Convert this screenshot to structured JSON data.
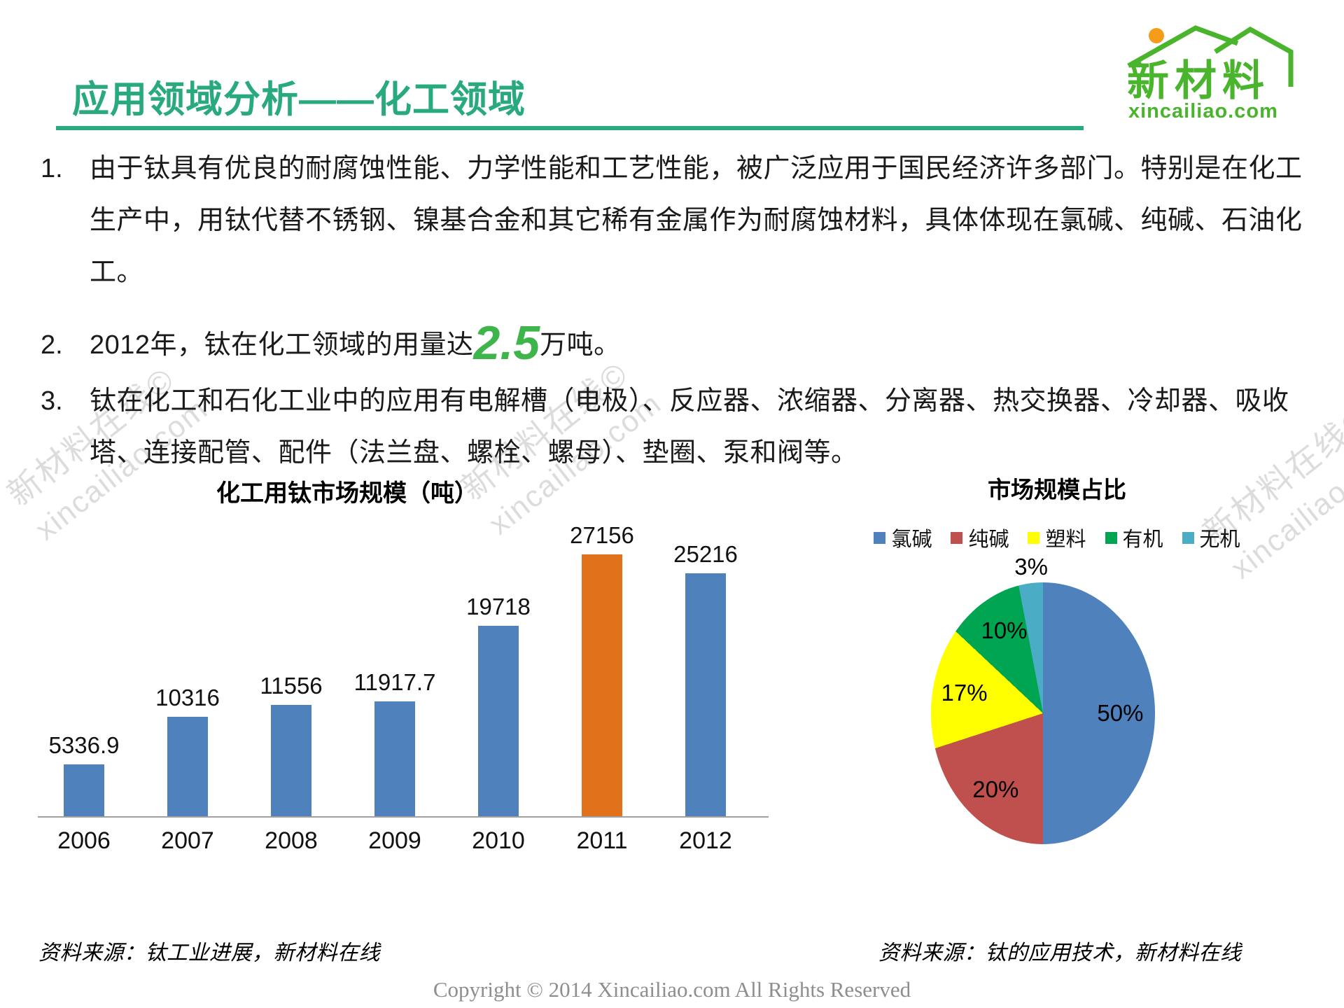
{
  "header": {
    "title": "应用领域分析——化工领域",
    "logo_name": "新材料",
    "logo_domain": "xincailiao.com"
  },
  "bullets": [
    {
      "num": "1.",
      "text": "由于钛具有优良的耐腐蚀性能、力学性能和工艺性能，被广泛应用于国民经济许多部门。特别是在化工生产中，用钛代替不锈钢、镍基合金和其它稀有金属作为耐腐蚀材料，具体体现在氯碱、纯碱、石油化工。"
    },
    {
      "num": "2.",
      "pre": "2012年，钛在化工领域的用量达",
      "highlight": "2.5",
      "post": "万吨。"
    },
    {
      "num": "3.",
      "text": "钛在化工和石化工业中的应用有电解槽（电极）、反应器、浓缩器、分离器、热交换器、冷却器、吸收塔、连接配管、配件（法兰盘、螺栓、螺母）、垫圈、泵和阀等。"
    }
  ],
  "chart_data": [
    {
      "type": "bar",
      "title": "化工用钛市场规模（吨）",
      "categories": [
        "2006",
        "2007",
        "2008",
        "2009",
        "2010",
        "2011",
        "2012"
      ],
      "values": [
        5336.9,
        10316,
        11556,
        11917.7,
        19718,
        27156,
        25216
      ],
      "value_labels": [
        "5336.9",
        "10316",
        "11556",
        "11917.7",
        "19718",
        "27156",
        "25216"
      ],
      "bar_colors": [
        "#4f81bd",
        "#4f81bd",
        "#4f81bd",
        "#4f81bd",
        "#4f81bd",
        "#e2711b",
        "#4f81bd"
      ],
      "xlabel": "",
      "ylabel": "",
      "ylim": [
        0,
        27156
      ],
      "gridlines": false,
      "legend": "none",
      "highlight_category": "2011"
    },
    {
      "type": "pie",
      "title": "市场规模占比",
      "labels": [
        "氯碱",
        "纯碱",
        "塑料",
        "有机",
        "无机"
      ],
      "values": [
        50,
        20,
        17,
        10,
        3
      ],
      "value_labels": [
        "50%",
        "20%",
        "17%",
        "10%",
        "3%"
      ],
      "colors": [
        "#4f81bd",
        "#c0504d",
        "#ffff00",
        "#00a551",
        "#4bacc6"
      ],
      "legend_position": "top",
      "start_angle_deg": 0,
      "direction": "clockwise"
    }
  ],
  "watermark": {
    "line1": "新材料在线©",
    "line2": "xincailiao.com"
  },
  "footer": {
    "source_left": "资料来源：钛工业进展，新材料在线",
    "source_right": "资料来源：钛的应用技术，新材料在线",
    "copyright": "Copyright © 2014   Xincailiao.com   All Rights Reserved"
  },
  "colors": {
    "title_green": "#29a97e",
    "highlight_green": "#3db54a",
    "logo_green": "#49b42c",
    "logo_sun_orange": "#f59d1b",
    "bar_blue": "#4f81bd",
    "bar_orange": "#e2711b",
    "watermark_gray": "#d6d6d6"
  }
}
